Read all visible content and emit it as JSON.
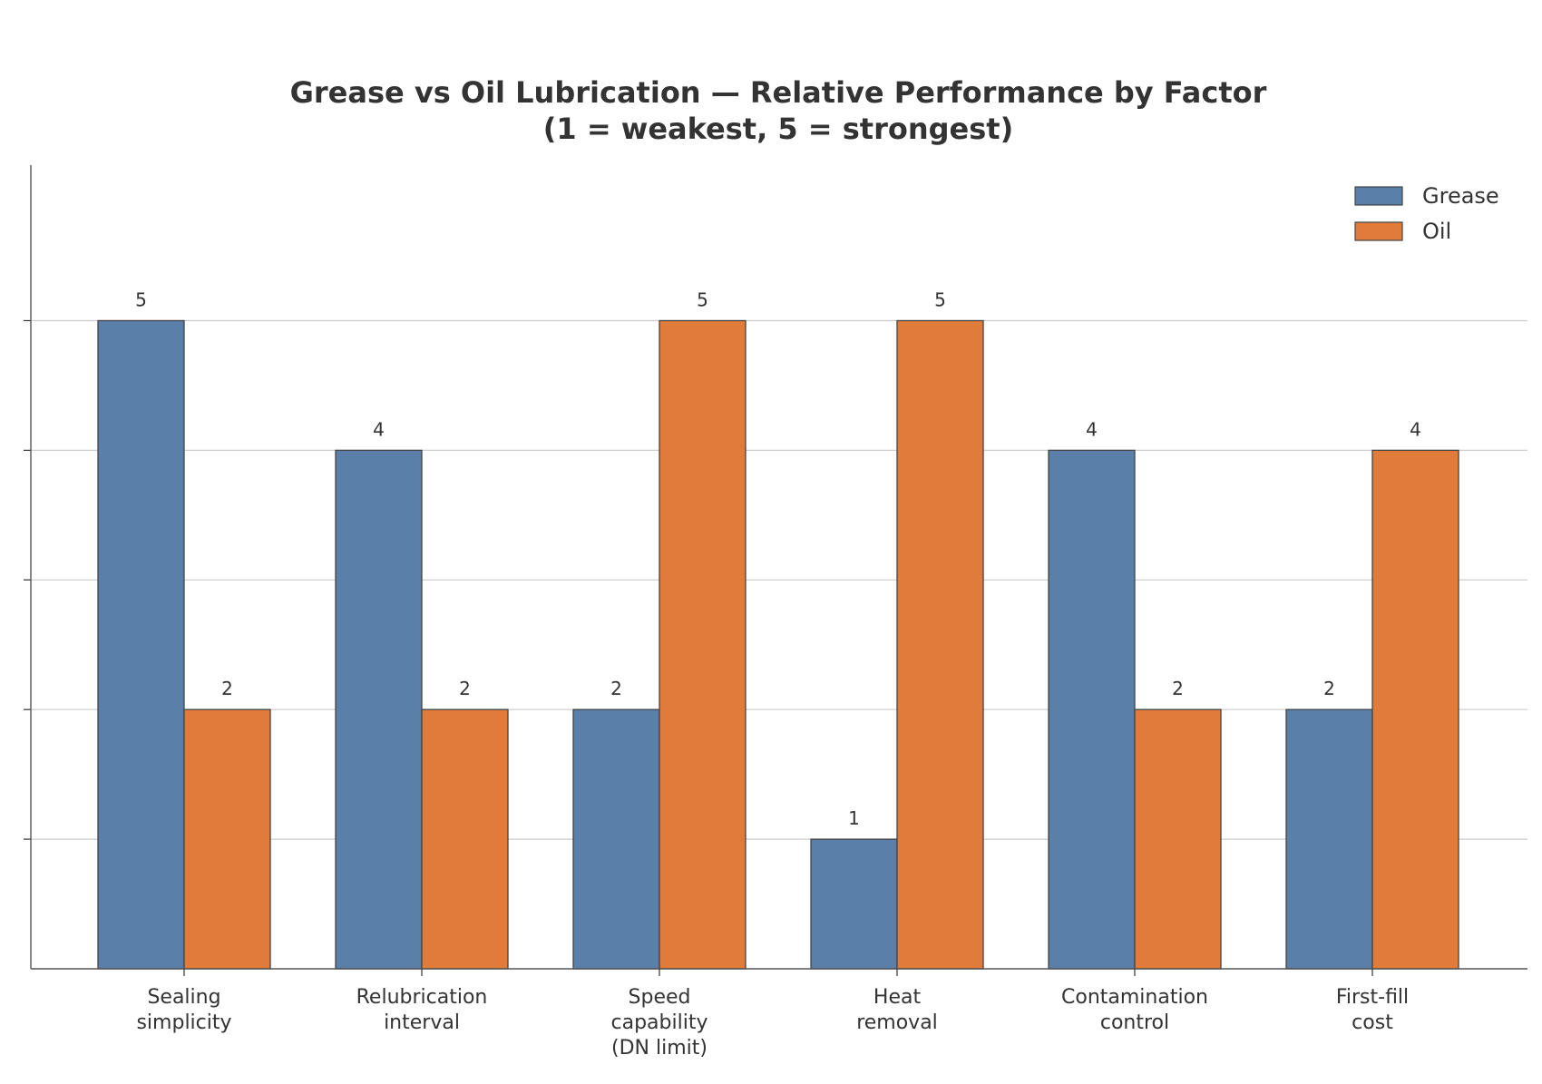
{
  "chart_data": {
    "type": "bar",
    "title_lines": [
      "Grease vs Oil Lubrication — Relative Performance by Factor",
      "(1 = weakest, 5 = strongest)"
    ],
    "categories": [
      [
        "Sealing",
        "simplicity"
      ],
      [
        "Relubrication",
        "interval"
      ],
      [
        "Speed",
        "capability",
        "(DN limit)"
      ],
      [
        "Heat",
        "removal"
      ],
      [
        "Contamination",
        "control"
      ],
      [
        "First-fill",
        "cost"
      ]
    ],
    "series": [
      {
        "name": "Grease",
        "color": "#5a7fa8",
        "values": [
          5,
          4,
          2,
          1,
          4,
          2
        ]
      },
      {
        "name": "Oil",
        "color": "#e07b39",
        "values": [
          2,
          2,
          5,
          5,
          2,
          4
        ]
      }
    ],
    "ylim": [
      0,
      6.2
    ],
    "yticks": [
      1,
      2,
      3,
      4,
      5
    ],
    "show_ytick_labels": false,
    "grid": "horizontal",
    "legend": "top-right",
    "xlabel": "",
    "ylabel": ""
  }
}
